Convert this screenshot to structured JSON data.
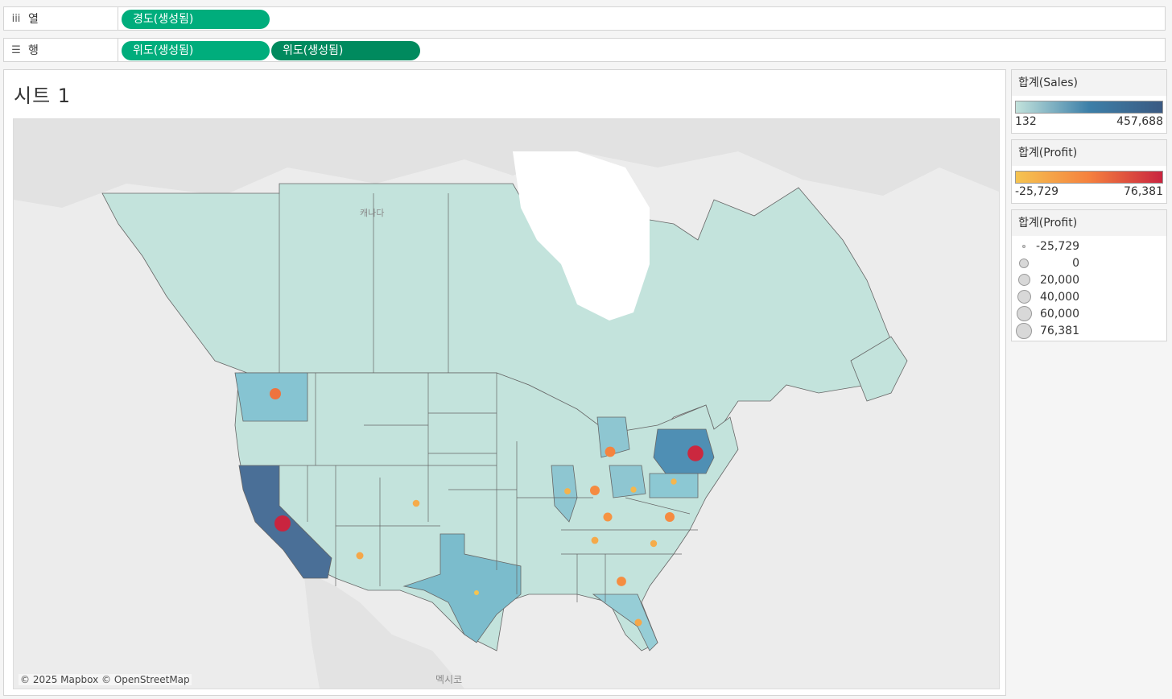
{
  "shelves": {
    "columns": {
      "icon": "columns-icon",
      "label": "열",
      "pills": [
        "경도(생성됨)"
      ]
    },
    "rows": {
      "icon": "rows-icon",
      "label": "행",
      "pills": [
        "위도(생성됨)",
        "위도(생성됨)"
      ]
    }
  },
  "sheet": {
    "title": "시트 1"
  },
  "map": {
    "attribution": "© 2025 Mapbox © OpenStreetMap",
    "place_labels": {
      "canada": "캐나다",
      "mexico": "멕시코"
    }
  },
  "legends": {
    "sales_color": {
      "title": "합계(Sales)",
      "min": "132",
      "max": "457,688",
      "colors": [
        "#c3e3dc",
        "#3c7fa8",
        "#3b5a82"
      ]
    },
    "profit_color": {
      "title": "합계(Profit)",
      "min": "-25,729",
      "max": "76,381",
      "colors": [
        "#f5c451",
        "#f5813e",
        "#c9243f"
      ]
    },
    "profit_size": {
      "title": "합계(Profit)",
      "items": [
        "-25,729",
        "0",
        "20,000",
        "40,000",
        "60,000",
        "76,381"
      ]
    }
  },
  "chart_data": {
    "type": "map",
    "title": "시트 1",
    "region_measure": "합계(Sales)",
    "mark_color_measure": "합계(Profit)",
    "mark_size_measure": "합계(Profit)",
    "regions": [
      {
        "region": "California",
        "sales_level": 1.0
      },
      {
        "region": "New York",
        "sales_level": 0.68
      },
      {
        "region": "Texas",
        "sales_level": 0.37
      },
      {
        "region": "Washington",
        "sales_level": 0.3
      },
      {
        "region": "Pennsylvania",
        "sales_level": 0.25
      },
      {
        "region": "Florida",
        "sales_level": 0.19
      },
      {
        "region": "Illinois",
        "sales_level": 0.17
      },
      {
        "region": "Ohio",
        "sales_level": 0.17
      },
      {
        "region": "Michigan",
        "sales_level": 0.17
      }
    ],
    "marks": [
      {
        "region": "California",
        "profit": 76381
      },
      {
        "region": "New York",
        "profit": 74000
      },
      {
        "region": "Washington",
        "profit": 33000
      },
      {
        "region": "Michigan",
        "profit": 24000
      },
      {
        "region": "Virginia",
        "profit": 18000
      },
      {
        "region": "Indiana",
        "profit": 18000
      },
      {
        "region": "Georgia",
        "profit": 16000
      },
      {
        "region": "Kentucky",
        "profit": 11000
      },
      {
        "region": "Texas",
        "profit": -25729
      },
      {
        "region": "Ohio",
        "profit": -16000
      },
      {
        "region": "Pennsylvania",
        "profit": -15000
      },
      {
        "region": "Illinois",
        "profit": -12000
      },
      {
        "region": "Colorado",
        "profit": -6500
      },
      {
        "region": "Tennessee",
        "profit": -5300
      },
      {
        "region": "Florida",
        "profit": -3400
      },
      {
        "region": "Arizona",
        "profit": -3400
      },
      {
        "region": "North Carolina",
        "profit": -7500
      }
    ]
  }
}
